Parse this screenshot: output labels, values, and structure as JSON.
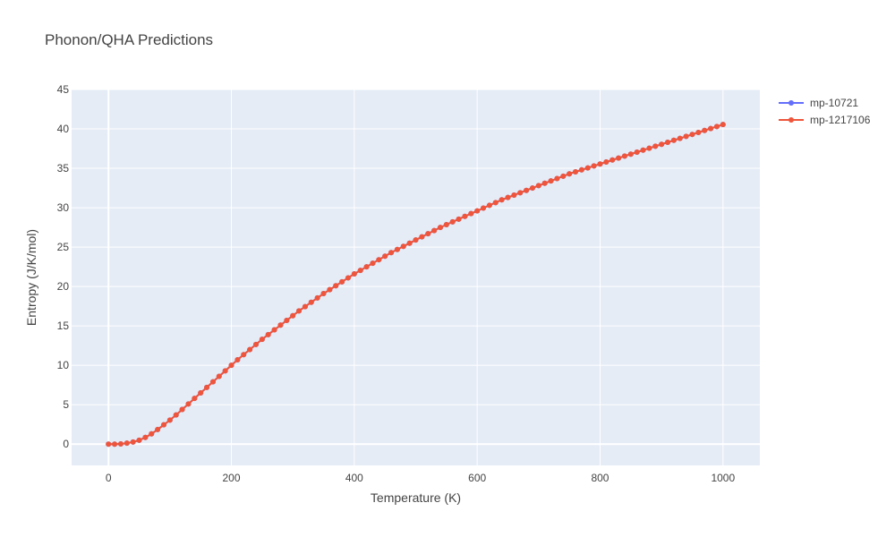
{
  "chart_data": {
    "type": "line",
    "title": "Phonon/QHA Predictions",
    "xlabel": "Temperature (K)",
    "ylabel": "Entropy (J/K/mol)",
    "xlim": [
      -60,
      1060
    ],
    "ylim": [
      -2.7,
      45
    ],
    "x_ticks": [
      0,
      200,
      400,
      600,
      800,
      1000
    ],
    "y_ticks": [
      0,
      5,
      10,
      15,
      20,
      25,
      30,
      35,
      40,
      45
    ],
    "grid": true,
    "legend_position": "top-right",
    "background_color": "#e5ecf6",
    "x": [
      0,
      10,
      20,
      30,
      40,
      50,
      60,
      70,
      80,
      90,
      100,
      110,
      120,
      130,
      140,
      150,
      160,
      170,
      180,
      190,
      200,
      210,
      220,
      230,
      240,
      250,
      260,
      270,
      280,
      290,
      300,
      310,
      320,
      330,
      340,
      350,
      360,
      370,
      380,
      390,
      400,
      410,
      420,
      430,
      440,
      450,
      460,
      470,
      480,
      490,
      500,
      510,
      520,
      530,
      540,
      550,
      560,
      570,
      580,
      590,
      600,
      610,
      620,
      630,
      640,
      650,
      660,
      670,
      680,
      690,
      700,
      710,
      720,
      730,
      740,
      750,
      760,
      770,
      780,
      790,
      800,
      810,
      820,
      830,
      840,
      850,
      860,
      870,
      880,
      890,
      900,
      910,
      920,
      930,
      940,
      950,
      960,
      970,
      980,
      990,
      1000
    ],
    "series": [
      {
        "name": "mp-10721",
        "color": "#636efa",
        "values": [
          0,
          0,
          0.03,
          0.12,
          0.27,
          0.5,
          0.85,
          1.3,
          1.85,
          2.45,
          3.05,
          3.7,
          4.4,
          5.1,
          5.8,
          6.5,
          7.2,
          7.9,
          8.6,
          9.3,
          10.0,
          10.7,
          11.35,
          12.0,
          12.65,
          13.3,
          13.9,
          14.5,
          15.1,
          15.7,
          16.3,
          16.9,
          17.45,
          18.0,
          18.55,
          19.1,
          19.6,
          20.1,
          20.6,
          21.1,
          21.6,
          22.05,
          22.5,
          22.95,
          23.4,
          23.85,
          24.3,
          24.7,
          25.1,
          25.5,
          25.9,
          26.3,
          26.7,
          27.1,
          27.5,
          27.85,
          28.2,
          28.55,
          28.9,
          29.25,
          29.6,
          29.95,
          30.3,
          30.65,
          31.0,
          31.3,
          31.6,
          31.9,
          32.2,
          32.5,
          32.8,
          33.1,
          33.4,
          33.7,
          34.0,
          34.3,
          34.55,
          34.8,
          35.05,
          35.3,
          35.55,
          35.8,
          36.05,
          36.3,
          36.55,
          36.8,
          37.05,
          37.3,
          37.55,
          37.8,
          38.05,
          38.3,
          38.55,
          38.8,
          39.05,
          39.3,
          39.55,
          39.8,
          40.05,
          40.3,
          40.55
        ]
      },
      {
        "name": "mp-1217106",
        "color": "#ef553b",
        "values": [
          0,
          0,
          0.03,
          0.12,
          0.27,
          0.5,
          0.85,
          1.3,
          1.85,
          2.45,
          3.05,
          3.7,
          4.4,
          5.1,
          5.8,
          6.5,
          7.2,
          7.9,
          8.6,
          9.3,
          10.0,
          10.7,
          11.35,
          12.0,
          12.65,
          13.3,
          13.9,
          14.5,
          15.1,
          15.7,
          16.3,
          16.9,
          17.45,
          18.0,
          18.55,
          19.1,
          19.6,
          20.1,
          20.6,
          21.1,
          21.6,
          22.05,
          22.5,
          22.95,
          23.4,
          23.85,
          24.3,
          24.7,
          25.1,
          25.5,
          25.9,
          26.3,
          26.7,
          27.1,
          27.5,
          27.85,
          28.2,
          28.55,
          28.9,
          29.25,
          29.6,
          29.95,
          30.3,
          30.65,
          31.0,
          31.3,
          31.6,
          31.9,
          32.2,
          32.5,
          32.8,
          33.1,
          33.4,
          33.7,
          34.0,
          34.3,
          34.55,
          34.8,
          35.05,
          35.3,
          35.55,
          35.8,
          36.05,
          36.3,
          36.55,
          36.8,
          37.05,
          37.3,
          37.55,
          37.8,
          38.05,
          38.3,
          38.55,
          38.8,
          39.05,
          39.3,
          39.55,
          39.8,
          40.05,
          40.3,
          40.55
        ]
      }
    ]
  }
}
